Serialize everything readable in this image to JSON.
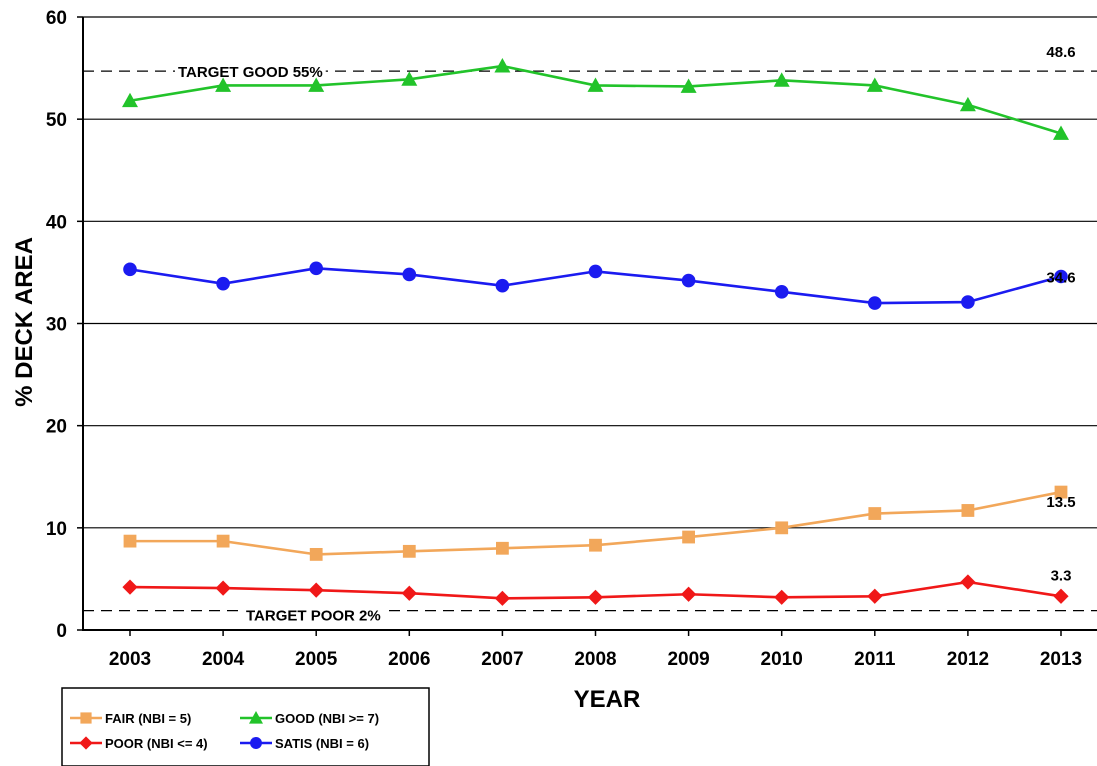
{
  "chart_data": {
    "type": "line",
    "xlabel": "YEAR",
    "ylabel": "% DECK AREA",
    "ylim": [
      0,
      60
    ],
    "yticks": [
      0,
      10,
      20,
      30,
      40,
      50,
      60
    ],
    "grid": "horizontal",
    "categories": [
      "2003",
      "2004",
      "2005",
      "2006",
      "2007",
      "2008",
      "2009",
      "2010",
      "2011",
      "2012",
      "2013"
    ],
    "series": [
      {
        "key": "good",
        "name": "GOOD (NBI >= 7)",
        "color": "#22c32a",
        "marker": "triangle",
        "values": [
          51.8,
          53.3,
          53.3,
          53.9,
          55.2,
          53.3,
          53.2,
          53.8,
          53.3,
          51.4,
          48.6
        ],
        "end_label": "48.6"
      },
      {
        "key": "satis",
        "name": "SATIS (NBI = 6)",
        "color": "#1b1bf0",
        "marker": "circle",
        "values": [
          35.3,
          33.9,
          35.4,
          34.8,
          33.7,
          35.1,
          34.2,
          33.1,
          32.0,
          32.1,
          34.6
        ],
        "end_label": "34.6"
      },
      {
        "key": "fair",
        "name": "FAIR (NBI = 5)",
        "color": "#f2a75a",
        "marker": "square",
        "values": [
          8.7,
          8.7,
          7.4,
          7.7,
          8.0,
          8.3,
          9.1,
          10.0,
          11.4,
          11.7,
          13.5
        ],
        "end_label": "13.5"
      },
      {
        "key": "poor",
        "name": "POOR (NBI <= 4)",
        "color": "#f01818",
        "marker": "diamond",
        "values": [
          4.2,
          4.1,
          3.9,
          3.6,
          3.1,
          3.2,
          3.5,
          3.2,
          3.3,
          4.7,
          3.3
        ],
        "end_label": "3.3"
      }
    ],
    "reference_lines": [
      {
        "key": "target_good",
        "value": 54.7,
        "label": "TARGET GOOD 55%"
      },
      {
        "key": "target_poor",
        "value": 1.9,
        "label": "TARGET POOR 2%"
      }
    ],
    "legend": {
      "placement": "bottom-left",
      "order": [
        "fair",
        "good",
        "poor",
        "satis"
      ]
    }
  }
}
